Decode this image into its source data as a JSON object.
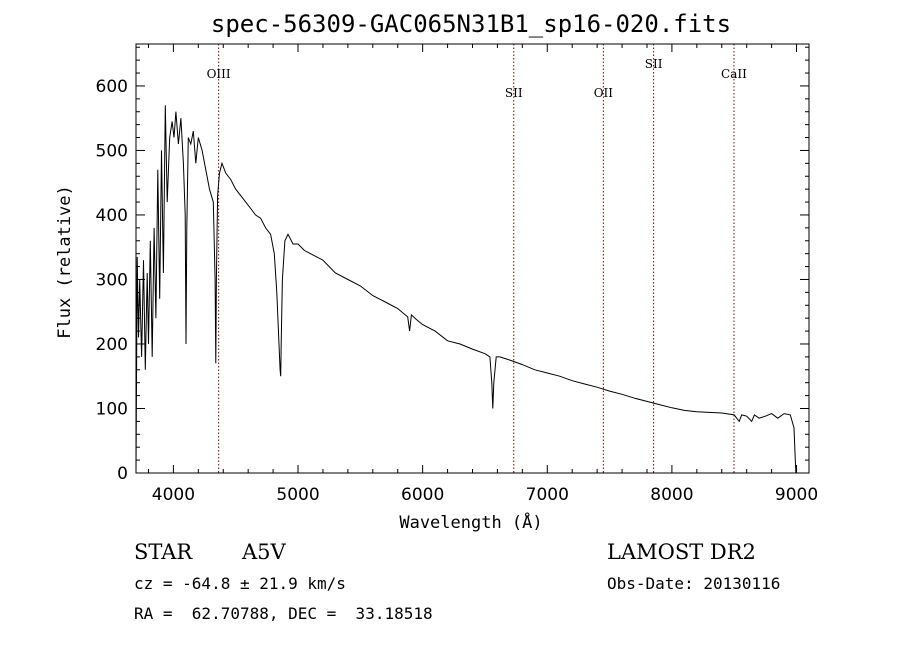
{
  "chart_data": {
    "type": "line",
    "title": "spec-56309-GAC065N31B1_sp16-020.fits",
    "xlabel": "Wavelength (Å)",
    "ylabel": "Flux (relative)",
    "xlim": [
      3700,
      9100
    ],
    "ylim": [
      0,
      665
    ],
    "xticks": [
      4000,
      5000,
      6000,
      7000,
      8000,
      9000
    ],
    "yticks": [
      0,
      100,
      200,
      300,
      400,
      500,
      600
    ],
    "grid": false,
    "legend": "none",
    "line_color": "#000000",
    "line_markers": [
      {
        "label": "OIII",
        "wavelength": 4363,
        "label_flux": 612
      },
      {
        "label": "SII",
        "wavelength": 6731,
        "label_flux": 583
      },
      {
        "label": "OII",
        "wavelength": 7450,
        "label_flux": 583
      },
      {
        "label": "SII",
        "wavelength": 7853,
        "label_flux": 628
      },
      {
        "label": "CaII",
        "wavelength": 8498,
        "label_flux": 612
      }
    ],
    "marker_color": "#8b0000",
    "series": [
      {
        "x": [
          3700,
          3710,
          3720,
          3730,
          3745,
          3760,
          3775,
          3790,
          3800,
          3815,
          3830,
          3845,
          3860,
          3875,
          3890,
          3905,
          3920,
          3935,
          3950,
          3970,
          3990,
          4005,
          4020,
          4040,
          4060,
          4080,
          4095,
          4101,
          4108,
          4120,
          4140,
          4160,
          4180,
          4200,
          4230,
          4260,
          4290,
          4320,
          4335,
          4340,
          4345,
          4355,
          4370,
          4390,
          4420,
          4460,
          4500,
          4540,
          4580,
          4620,
          4660,
          4700,
          4740,
          4780,
          4810,
          4830,
          4845,
          4856,
          4861,
          4866,
          4875,
          4895,
          4920,
          4960,
          5000,
          5050,
          5100,
          5150,
          5200,
          5250,
          5300,
          5400,
          5500,
          5600,
          5700,
          5800,
          5880,
          5895,
          5910,
          5950,
          6000,
          6100,
          6200,
          6300,
          6400,
          6500,
          6540,
          6555,
          6563,
          6571,
          6590,
          6620,
          6700,
          6800,
          6900,
          7000,
          7100,
          7200,
          7300,
          7400,
          7500,
          7600,
          7700,
          7800,
          7900,
          8000,
          8100,
          8200,
          8300,
          8400,
          8500,
          8540,
          8560,
          8600,
          8640,
          8662,
          8700,
          8750,
          8800,
          8850,
          8900,
          8950,
          8980,
          8990,
          8995
        ],
        "y": [
          0,
          335,
          210,
          300,
          180,
          330,
          160,
          310,
          200,
          360,
          180,
          380,
          240,
          470,
          270,
          500,
          310,
          570,
          420,
          520,
          545,
          520,
          560,
          510,
          550,
          480,
          400,
          200,
          380,
          520,
          510,
          530,
          480,
          520,
          500,
          470,
          440,
          420,
          300,
          170,
          300,
          430,
          465,
          480,
          465,
          455,
          440,
          430,
          420,
          410,
          400,
          395,
          380,
          370,
          340,
          280,
          210,
          160,
          150,
          210,
          300,
          360,
          370,
          355,
          355,
          345,
          340,
          335,
          330,
          320,
          310,
          300,
          290,
          275,
          265,
          255,
          242,
          220,
          245,
          238,
          230,
          220,
          205,
          200,
          192,
          185,
          180,
          140,
          100,
          140,
          180,
          180,
          175,
          168,
          160,
          155,
          150,
          143,
          138,
          133,
          127,
          122,
          116,
          111,
          106,
          101,
          97,
          95,
          94,
          93,
          90,
          80,
          90,
          88,
          80,
          90,
          85,
          88,
          92,
          85,
          92,
          90,
          70,
          20,
          0
        ]
      }
    ]
  },
  "info": {
    "object_class": "STAR",
    "subclass": "A5V",
    "survey": "LAMOST DR2",
    "redshift": "cz = -64.8 ± 21.9 km/s",
    "obs_date": "Obs-Date: 20130116",
    "coords": "RA =  62.70788, DEC =  33.18518"
  }
}
